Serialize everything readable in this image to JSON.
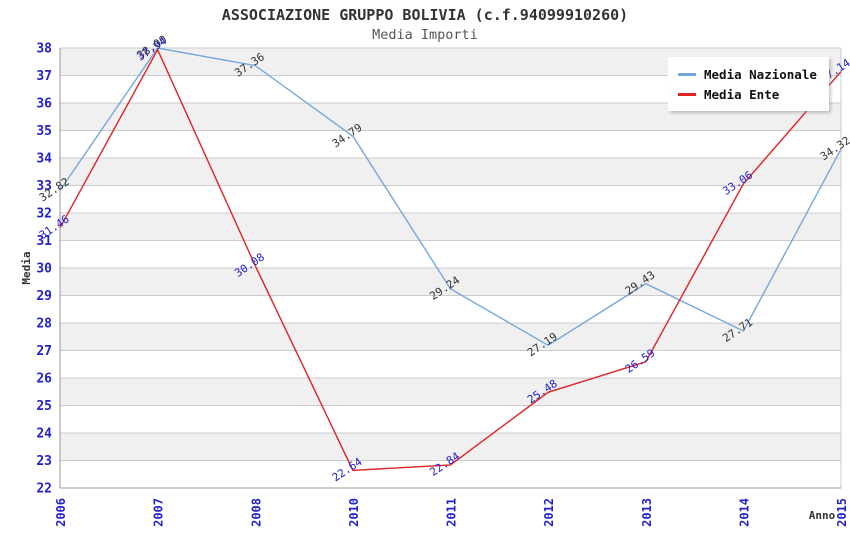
{
  "chart_data": {
    "type": "line",
    "title": "ASSOCIAZIONE GRUPPO BOLIVIA (c.f.94099910260)",
    "subtitle": "Media Importi",
    "xlabel": "Anno",
    "ylabel": "Media",
    "categories": [
      "2006",
      "2007",
      "2008",
      "2010",
      "2011",
      "2012",
      "2013",
      "2014",
      "2015"
    ],
    "series": [
      {
        "name": "Media Nazionale",
        "color": "#74a7dc",
        "label_color": "#333333",
        "values": [
          32.82,
          38.0,
          37.36,
          34.79,
          29.24,
          27.19,
          29.43,
          27.71,
          34.32
        ]
      },
      {
        "name": "Media Ente",
        "color": "#e02222",
        "label_color": "#2222cc",
        "values": [
          31.46,
          37.94,
          30.08,
          22.64,
          22.84,
          25.48,
          26.59,
          33.06,
          37.14
        ]
      }
    ],
    "ylim": [
      22,
      38
    ],
    "yticks": [
      22,
      23,
      24,
      25,
      26,
      27,
      28,
      29,
      30,
      31,
      32,
      33,
      34,
      35,
      36,
      37,
      38
    ],
    "value_label_decimals": 2,
    "legend_position": "top-right",
    "grid": "horizontal-bands",
    "colors": {
      "axis_text": "#2222cc",
      "band": "#f0f0f0",
      "gridline": "#cccccc",
      "plot_border": "#999999",
      "title_text": "#333333",
      "subtitle_text": "#555555"
    }
  }
}
